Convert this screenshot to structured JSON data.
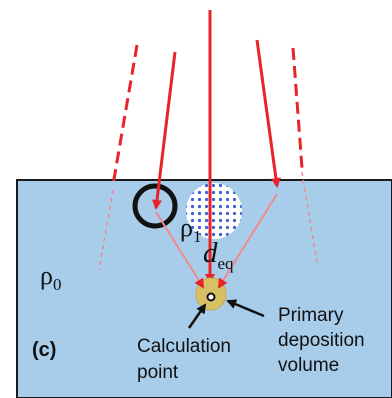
{
  "labels": {
    "rho0": "ρ",
    "rho0_sub": "0",
    "rho1": "ρ",
    "rho1_sub": "1",
    "deq": "d",
    "deq_sub": "eq",
    "panel": "(c)",
    "calc_line1": "Calculation",
    "calc_line2": "point",
    "prim_line1": "Primary",
    "prim_line2": "deposition",
    "prim_line3": "volume"
  },
  "colors": {
    "medium": "#a8cdeb",
    "border": "#1a1a1a",
    "ray": "#e8232a",
    "ray_faint": "#f08a8e",
    "deposition": "#d8c064",
    "inhomogeneity_dots": "#3f5fd6"
  }
}
